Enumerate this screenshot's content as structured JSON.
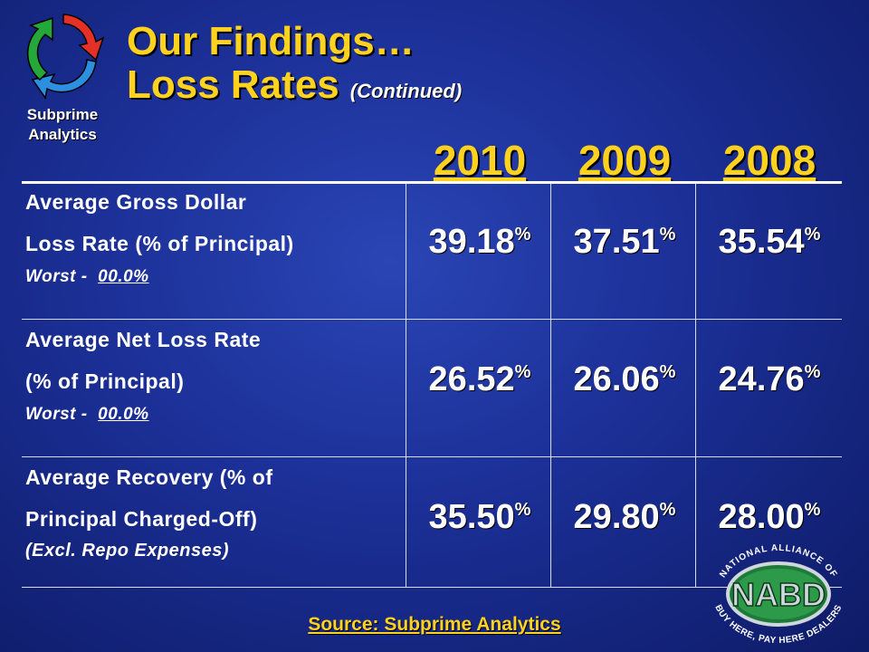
{
  "logo": {
    "line1": "Subprime",
    "line2": "Analytics",
    "icon": "recycle-arrows-icon"
  },
  "title": {
    "line1": "Our Findings…",
    "line2": "Loss Rates",
    "continued": "(Continued)"
  },
  "years": [
    "2010",
    "2009",
    "2008"
  ],
  "rows": [
    {
      "label1": "Average Gross Dollar",
      "label2": "Loss Rate (% of Principal)",
      "worst_prefix": "Worst -",
      "worst_value": "00.0%",
      "values": [
        "39.18",
        "37.51",
        "35.54"
      ]
    },
    {
      "label1": "Average Net Loss Rate",
      "label2": "(% of Principal)",
      "worst_prefix": "Worst -",
      "worst_value": "00.0%",
      "values": [
        "26.52",
        "26.06",
        "24.76"
      ]
    },
    {
      "label1": "Average Recovery (% of",
      "label2": "Principal Charged-Off)",
      "note": "(Excl. Repo Expenses)",
      "values": [
        "35.50",
        "29.80",
        "28.00"
      ]
    }
  ],
  "percent_sign": "%",
  "source": "Source: Subprime Analytics",
  "nabd_logo": {
    "text": "NABD",
    "arc_top": "NATIONAL ALLIANCE OF",
    "arc_bottom": "BUY HERE, PAY HERE DEALERS"
  }
}
